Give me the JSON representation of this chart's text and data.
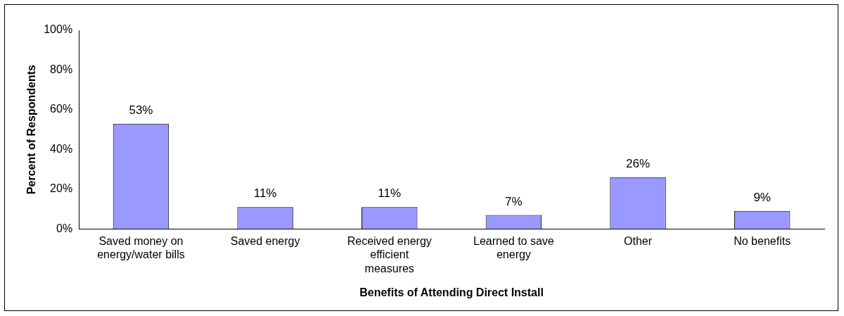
{
  "chart_data": {
    "type": "bar",
    "xlabel": "Benefits of Attending Direct Install",
    "ylabel": "Percent of Respondents",
    "categories": [
      "Saved money on energy/water bills",
      "Saved energy",
      "Received energy efficient measures",
      "Learned to save energy",
      "Other",
      "No benefits"
    ],
    "values": [
      53,
      11,
      11,
      7,
      26,
      9
    ],
    "value_labels": [
      "53%",
      "11%",
      "11%",
      "7%",
      "26%",
      "9%"
    ],
    "color": "#9999ff",
    "ylim": [
      0,
      100
    ],
    "yticks": [
      {
        "value": 0,
        "label": "0%"
      },
      {
        "value": 20,
        "label": "20%"
      },
      {
        "value": 40,
        "label": "40%"
      },
      {
        "value": 60,
        "label": "60%"
      },
      {
        "value": 80,
        "label": "80%"
      },
      {
        "value": 100,
        "label": "100%"
      }
    ],
    "grid": false,
    "legend": false
  }
}
